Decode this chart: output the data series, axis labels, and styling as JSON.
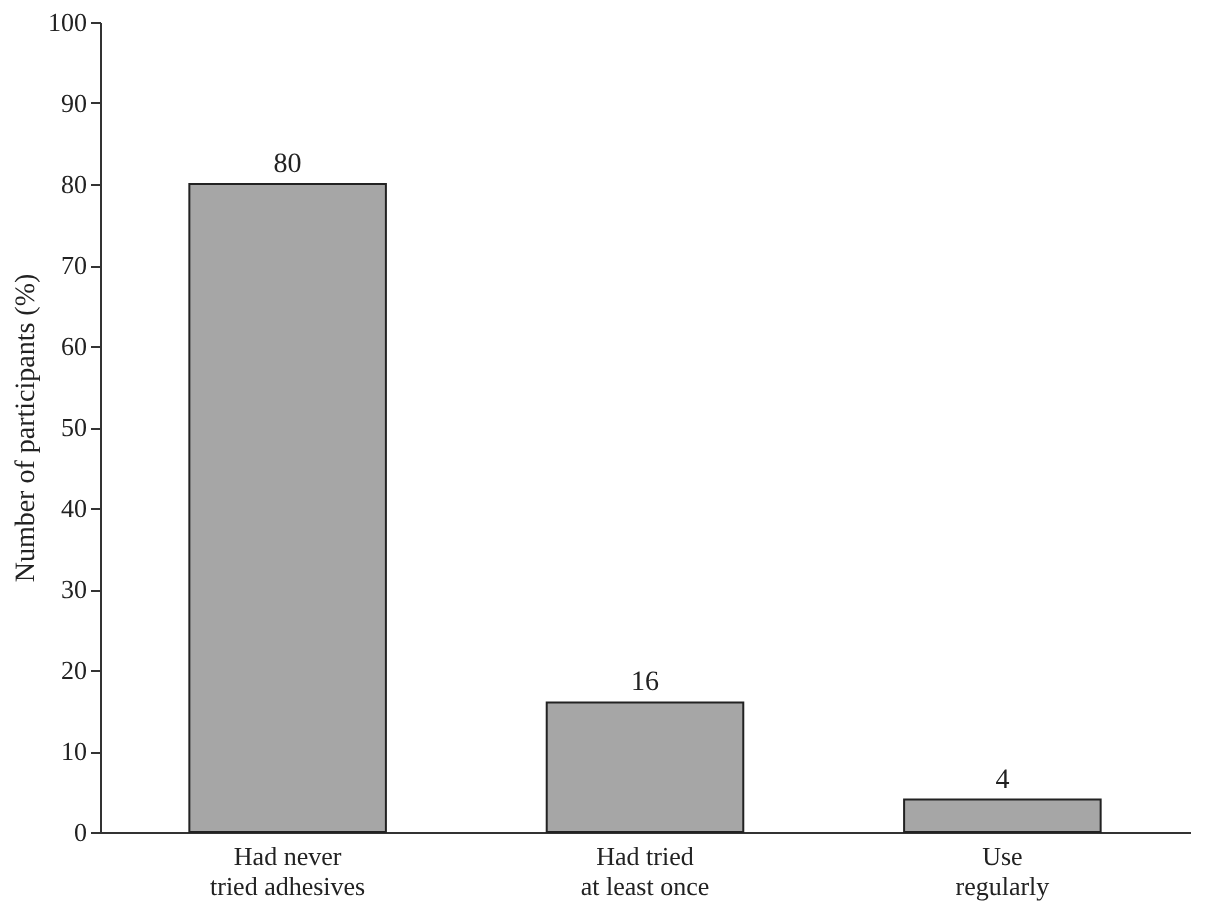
{
  "chart_data": {
    "type": "bar",
    "ylabel": "Number of participants (%)",
    "categories": [
      "Had never\ntried adhesives",
      "Had tried\nat least once",
      "Use\nregularly"
    ],
    "values": [
      80,
      16,
      4
    ],
    "color": "#a6a6a6",
    "ylim": [
      0,
      100
    ],
    "yticks": [
      0,
      10,
      20,
      30,
      40,
      50,
      60,
      70,
      80,
      90,
      100
    ],
    "grid": false,
    "data_labels": true
  }
}
